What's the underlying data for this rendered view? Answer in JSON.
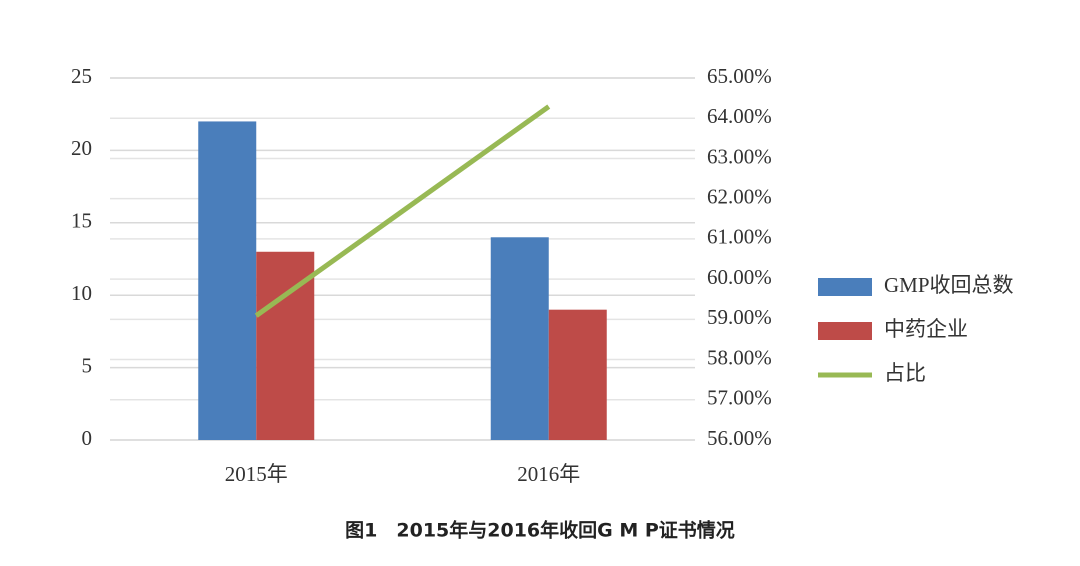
{
  "chart_data": {
    "type": "bar_line",
    "categories": [
      "2015年",
      "2016年"
    ],
    "series": [
      {
        "name": "GMP收回总数",
        "color": "#4a7ebb",
        "type": "bar",
        "values": [
          22,
          14
        ]
      },
      {
        "name": "中药企业",
        "color": "#be4b48",
        "type": "bar",
        "values": [
          13,
          9
        ]
      },
      {
        "name": "占比",
        "color": "#98b954",
        "type": "line",
        "axis": "y2",
        "values": [
          59.09,
          64.29
        ]
      }
    ],
    "ylim": [
      0,
      25
    ],
    "yticks": [
      0,
      5,
      10,
      15,
      20,
      25
    ],
    "y2lim": [
      56,
      65
    ],
    "y2ticks": [
      {
        "value": 56,
        "label": "56.00%"
      },
      {
        "value": 57,
        "label": "57.00%"
      },
      {
        "value": 58,
        "label": "58.00%"
      },
      {
        "value": 59,
        "label": "59.00%"
      },
      {
        "value": 60,
        "label": "60.00%"
      },
      {
        "value": 61,
        "label": "61.00%"
      },
      {
        "value": 62,
        "label": "62.00%"
      },
      {
        "value": 63,
        "label": "63.00%"
      },
      {
        "value": 64,
        "label": "64.00%"
      },
      {
        "value": 65,
        "label": "65.00%"
      }
    ],
    "grid": true,
    "legend": "right",
    "caption": "图1　2015年与2016年收回G M P证书情况"
  }
}
